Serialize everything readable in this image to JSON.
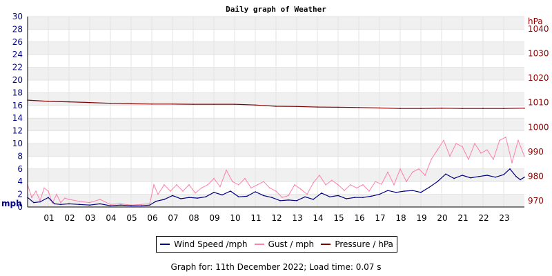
{
  "chart_data": {
    "type": "line",
    "title": "Daily graph of Weather",
    "left_axis": {
      "unit_label": "mph",
      "ylim": [
        0,
        30
      ],
      "ticks": [
        "0",
        "2",
        "4",
        "6",
        "8",
        "10",
        "12",
        "14",
        "16",
        "18",
        "20",
        "22",
        "24",
        "26",
        "28",
        "30"
      ]
    },
    "right_axis": {
      "unit_label": "hPa",
      "ylim": [
        967.5,
        1045
      ],
      "ticks": [
        "970",
        "980",
        "990",
        "1000",
        "1010",
        "1020",
        "1030",
        "1040"
      ]
    },
    "x_axis": {
      "xlim": [
        0,
        24
      ],
      "ticks": [
        "01",
        "02",
        "03",
        "04",
        "05",
        "06",
        "07",
        "08",
        "09",
        "10",
        "11",
        "12",
        "13",
        "14",
        "15",
        "16",
        "17",
        "18",
        "19",
        "20",
        "21",
        "22",
        "23"
      ]
    },
    "grid": true,
    "legend_placement": "bottom",
    "series": [
      {
        "name": "Wind Speed /mph",
        "axis": "left",
        "color": "#000080",
        "x": [
          0,
          0.3,
          0.6,
          1,
          1.3,
          1.6,
          2,
          2.5,
          3,
          3.5,
          4,
          4.5,
          5,
          5.5,
          5.9,
          6.2,
          6.6,
          7,
          7.4,
          7.8,
          8.2,
          8.6,
          9,
          9.4,
          9.8,
          10.2,
          10.6,
          11,
          11.4,
          11.8,
          12.2,
          12.6,
          13,
          13.4,
          13.8,
          14.2,
          14.6,
          15,
          15.4,
          15.8,
          16.2,
          16.6,
          17,
          17.4,
          17.8,
          18.2,
          18.6,
          19,
          19.4,
          19.8,
          20.2,
          20.6,
          21,
          21.4,
          21.8,
          22.2,
          22.6,
          23,
          23.3,
          23.6,
          23.8,
          24
        ],
        "values": [
          1.5,
          0.7,
          0.8,
          1.5,
          0.5,
          0.4,
          0.5,
          0.4,
          0.3,
          0.5,
          0.2,
          0.3,
          0.2,
          0.2,
          0.3,
          0.9,
          1.2,
          1.8,
          1.3,
          1.5,
          1.4,
          1.6,
          2.3,
          1.9,
          2.5,
          1.6,
          1.7,
          2.4,
          1.8,
          1.5,
          1.0,
          1.1,
          1.0,
          1.6,
          1.2,
          2.2,
          1.6,
          1.8,
          1.3,
          1.5,
          1.5,
          1.7,
          2.0,
          2.6,
          2.3,
          2.5,
          2.6,
          2.3,
          3.1,
          4.0,
          5.2,
          4.5,
          5.0,
          4.6,
          4.8,
          5.0,
          4.7,
          5.1,
          6.0,
          4.8,
          4.3,
          4.7
        ]
      },
      {
        "name": "Gust / mph",
        "axis": "left",
        "color": "#ff7fa8",
        "x": [
          0,
          0.2,
          0.4,
          0.6,
          0.8,
          1,
          1.2,
          1.4,
          1.6,
          1.8,
          2,
          2.5,
          3,
          3.5,
          4,
          4.5,
          5,
          5.5,
          5.9,
          6.1,
          6.3,
          6.6,
          6.9,
          7.2,
          7.5,
          7.8,
          8.1,
          8.4,
          8.7,
          9,
          9.3,
          9.6,
          9.9,
          10.2,
          10.5,
          10.8,
          11.1,
          11.4,
          11.7,
          12,
          12.3,
          12.6,
          12.9,
          13.2,
          13.5,
          13.8,
          14.1,
          14.4,
          14.7,
          15,
          15.3,
          15.6,
          15.9,
          16.2,
          16.5,
          16.8,
          17.1,
          17.4,
          17.7,
          18,
          18.3,
          18.6,
          18.9,
          19.2,
          19.5,
          19.8,
          20.1,
          20.4,
          20.7,
          21,
          21.3,
          21.6,
          21.9,
          22.2,
          22.5,
          22.8,
          23.1,
          23.4,
          23.7,
          24
        ],
        "values": [
          3.5,
          1.5,
          2.5,
          1.0,
          3.0,
          2.5,
          0.6,
          2.0,
          0.7,
          1.4,
          1.2,
          0.9,
          0.7,
          1.2,
          0.4,
          0.5,
          0.3,
          0.4,
          0.5,
          3.5,
          2.0,
          3.5,
          2.5,
          3.5,
          2.5,
          3.5,
          2.2,
          3.0,
          3.5,
          4.5,
          3.2,
          5.8,
          4.0,
          3.5,
          4.5,
          3.0,
          3.5,
          4.0,
          3.0,
          2.5,
          1.5,
          1.8,
          3.5,
          2.8,
          2.0,
          3.8,
          5.0,
          3.5,
          4.2,
          3.5,
          2.6,
          3.5,
          3.0,
          3.5,
          2.5,
          4.0,
          3.6,
          5.5,
          3.5,
          6.0,
          4.0,
          5.5,
          6.0,
          5.0,
          7.5,
          9.0,
          10.5,
          8.0,
          10.0,
          9.5,
          7.5,
          10.0,
          8.5,
          9.0,
          7.5,
          10.5,
          11.0,
          7.0,
          10.5,
          8.0
        ]
      },
      {
        "name": "Pressure / hPa",
        "axis": "right",
        "color": "#800000",
        "x": [
          0,
          1,
          2,
          3,
          4,
          5,
          6,
          7,
          8,
          9,
          10,
          11,
          12,
          13,
          14,
          15,
          16,
          17,
          18,
          19,
          20,
          21,
          22,
          23,
          24
        ],
        "values": [
          1011,
          1010.5,
          1010.3,
          1010,
          1009.7,
          1009.5,
          1009.4,
          1009.4,
          1009.3,
          1009.3,
          1009.3,
          1009,
          1008.5,
          1008.4,
          1008.2,
          1008.1,
          1008,
          1007.8,
          1007.6,
          1007.6,
          1007.7,
          1007.6,
          1007.6,
          1007.6,
          1007.7
        ]
      }
    ]
  },
  "footer": {
    "text": "Graph for: 11th December 2022; Load time: 0.07 s"
  }
}
